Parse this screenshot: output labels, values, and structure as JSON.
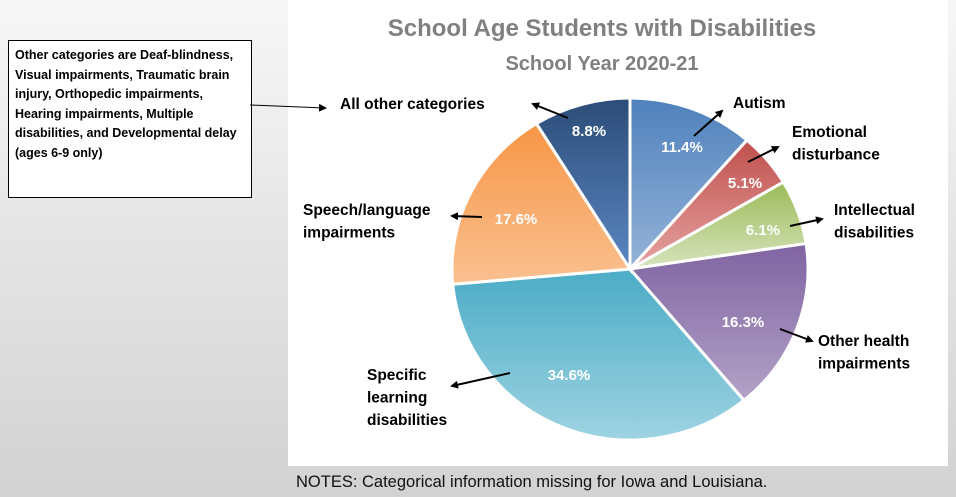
{
  "chart_data": {
    "type": "pie",
    "title": "School Age Students with Disabilities",
    "subtitle": "School Year 2020-21",
    "start": "12 o'clock, clockwise",
    "slices": [
      {
        "label": "Autism",
        "value": 11.4,
        "value_label": "11.4%",
        "color": "#4f81bd",
        "color_light": "#95b3d7"
      },
      {
        "label": "Emotional disturbance",
        "lines": [
          "Emotional",
          "disturbance"
        ],
        "value": 5.1,
        "value_label": "5.1%",
        "color": "#c0504d",
        "color_light": "#e6a3a1"
      },
      {
        "label": "Intellectual disabilities",
        "lines": [
          "Intellectual",
          "disabilities"
        ],
        "value": 6.1,
        "value_label": "6.1%",
        "color": "#9bbb59",
        "color_light": "#d7e4bd"
      },
      {
        "label": "Other health impairments",
        "lines": [
          "Other health",
          "impairments"
        ],
        "value": 16.3,
        "value_label": "16.3%",
        "color": "#8064a2",
        "color_light": "#b3a2c7"
      },
      {
        "label": "Specific learning disabilities",
        "lines": [
          "Specific",
          "learning",
          "disabilities"
        ],
        "value": 34.6,
        "value_label": "34.6%",
        "color": "#4bacc6",
        "color_light": "#9ed3e2"
      },
      {
        "label": "Speech/language impairments",
        "lines": [
          "Speech/language",
          "impairments"
        ],
        "value": 17.6,
        "value_label": "17.6%",
        "color": "#f79646",
        "color_light": "#fac090"
      },
      {
        "label": "All other categories",
        "value": 8.8,
        "value_label": "8.8%",
        "color": "#2c4c78",
        "color_light": "#5b87c2"
      }
    ]
  },
  "callout": "Other categories are Deaf-blindness, Visual impairments, Traumatic brain injury, Orthopedic impairments, Hearing impairments, Multiple disabilities, and Developmental delay (ages 6-9 only)",
  "notes": "NOTES: Categorical information missing for Iowa and Louisiana."
}
